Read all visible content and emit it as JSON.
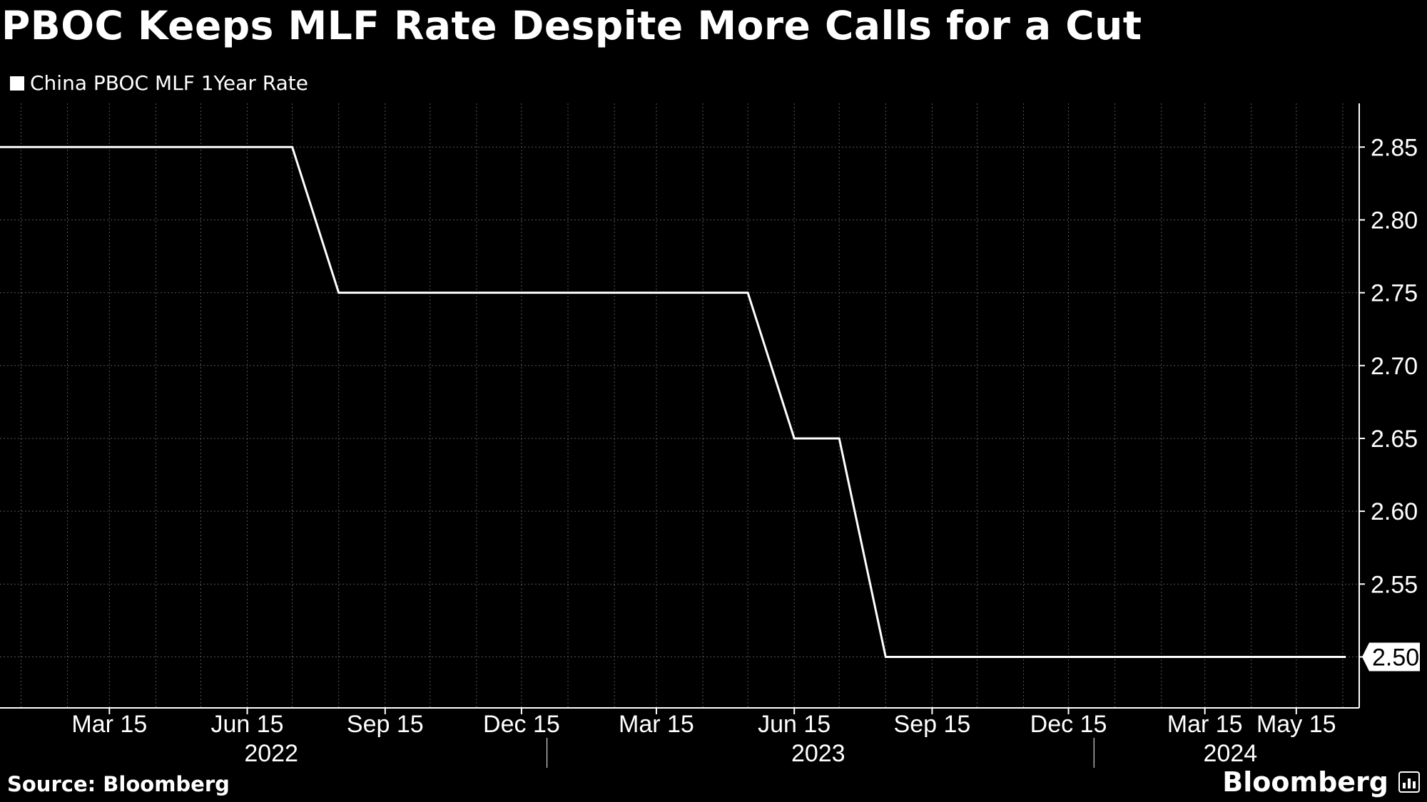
{
  "title": "PBOC Keeps MLF Rate Despite More Calls for a Cut",
  "legend_label": "China PBOC MLF 1Year Rate",
  "source": "Source: Bloomberg",
  "brand": "Bloomberg",
  "brand_icon": "bloomberg-terminal-icon",
  "colors": {
    "background": "#000000",
    "line": "#ffffff",
    "grid": "#555555"
  },
  "chart_data": {
    "type": "line",
    "title": "PBOC Keeps MLF Rate Despite More Calls for a Cut",
    "xlabel": "",
    "ylabel": "",
    "ylim": [
      2.465,
      2.88
    ],
    "xlim": [
      "2022-01-01",
      "2024-06-26"
    ],
    "y_ticks": [
      2.5,
      2.55,
      2.6,
      2.65,
      2.7,
      2.75,
      2.8,
      2.85
    ],
    "y_tick_labels": [
      "2.50",
      "2.55",
      "2.60",
      "2.65",
      "2.70",
      "2.75",
      "2.80",
      "2.85"
    ],
    "x_ticks": [
      {
        "date": "2022-03-15",
        "label": "Mar 15"
      },
      {
        "date": "2022-06-15",
        "label": "Jun 15"
      },
      {
        "date": "2022-09-15",
        "label": "Sep 15"
      },
      {
        "date": "2022-12-15",
        "label": "Dec 15"
      },
      {
        "date": "2023-03-15",
        "label": "Mar 15"
      },
      {
        "date": "2023-06-15",
        "label": "Jun 15"
      },
      {
        "date": "2023-09-15",
        "label": "Sep 15"
      },
      {
        "date": "2023-12-15",
        "label": "Dec 15"
      },
      {
        "date": "2024-03-15",
        "label": "Mar 15"
      },
      {
        "date": "2024-05-15",
        "label": "May 15"
      }
    ],
    "year_labels": [
      {
        "label": "2022",
        "center": "2022-07-01"
      },
      {
        "label": "2023",
        "center": "2023-07-01"
      },
      {
        "label": "2024",
        "center": "2024-04-01"
      }
    ],
    "year_separators": [
      "2023-01-01",
      "2024-01-01"
    ],
    "last_value_label": "2.50",
    "grid": true,
    "legend_position": "top-left",
    "series": [
      {
        "name": "China PBOC MLF 1Year Rate",
        "x": [
          "2022-01-01",
          "2022-07-15",
          "2022-08-15",
          "2023-05-15",
          "2023-06-15",
          "2023-07-15",
          "2023-08-15",
          "2024-06-17"
        ],
        "values": [
          2.85,
          2.85,
          2.75,
          2.75,
          2.65,
          2.65,
          2.5,
          2.5
        ]
      }
    ]
  }
}
